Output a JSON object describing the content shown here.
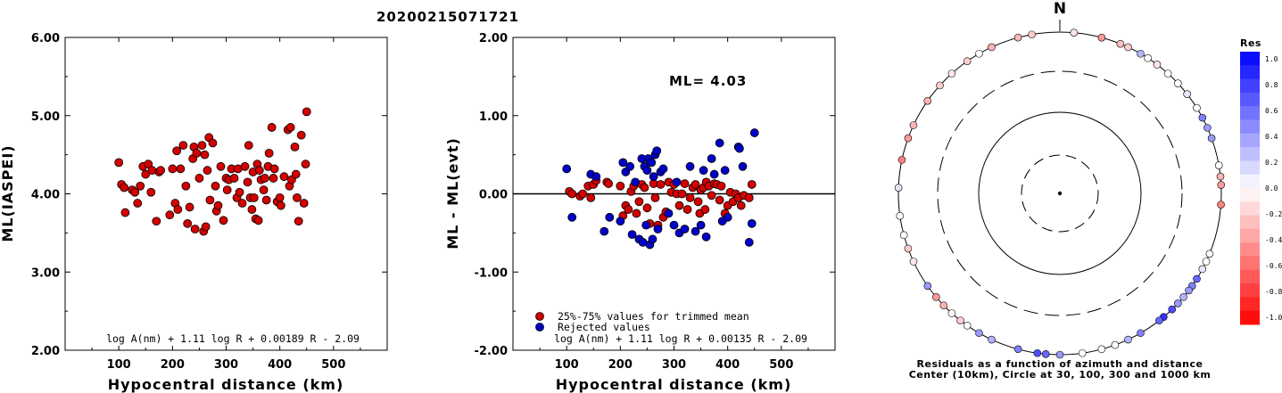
{
  "figure_title": "20200215071721",
  "chart_data": [
    {
      "type": "scatter",
      "ylabel": "ML(IASPEI)",
      "xlabel": "Hypocentral distance (km)",
      "xlim": [
        0,
        600
      ],
      "ylim": [
        2.0,
        6.0
      ],
      "xticks": [
        "100",
        "200",
        "300",
        "400",
        "500"
      ],
      "yticks": [
        "2.00",
        "3.00",
        "4.00",
        "5.00",
        "6.00"
      ],
      "formula": "log A(nm) + 1.11 log R + 0.00189 R - 2.09",
      "series": [
        {
          "color": "#d40000",
          "points": [
            [
              100,
              4.4
            ],
            [
              105,
              4.12
            ],
            [
              110,
              4.08
            ],
            [
              112,
              3.76
            ],
            [
              125,
              4.05
            ],
            [
              130,
              4.02
            ],
            [
              135,
              3.88
            ],
            [
              140,
              4.1
            ],
            [
              145,
              4.35
            ],
            [
              150,
              4.25
            ],
            [
              155,
              4.38
            ],
            [
              160,
              4.02
            ],
            [
              162,
              4.3
            ],
            [
              170,
              3.65
            ],
            [
              175,
              4.28
            ],
            [
              178,
              4.3
            ],
            [
              195,
              3.73
            ],
            [
              200,
              4.32
            ],
            [
              205,
              3.88
            ],
            [
              208,
              4.55
            ],
            [
              210,
              3.8
            ],
            [
              215,
              4.32
            ],
            [
              220,
              4.62
            ],
            [
              225,
              4.1
            ],
            [
              228,
              3.62
            ],
            [
              232,
              3.83
            ],
            [
              238,
              4.45
            ],
            [
              240,
              4.6
            ],
            [
              242,
              3.55
            ],
            [
              245,
              4.52
            ],
            [
              250,
              4.2
            ],
            [
              255,
              4.62
            ],
            [
              258,
              3.52
            ],
            [
              260,
              4.5
            ],
            [
              262,
              3.58
            ],
            [
              265,
              4.3
            ],
            [
              268,
              4.72
            ],
            [
              270,
              3.92
            ],
            [
              275,
              4.65
            ],
            [
              280,
              4.1
            ],
            [
              282,
              3.78
            ],
            [
              285,
              3.85
            ],
            [
              290,
              4.35
            ],
            [
              295,
              3.66
            ],
            [
              300,
              4.2
            ],
            [
              302,
              4.05
            ],
            [
              305,
              4.18
            ],
            [
              310,
              4.32
            ],
            [
              315,
              4.2
            ],
            [
              320,
              3.95
            ],
            [
              322,
              4.32
            ],
            [
              325,
              4.02
            ],
            [
              330,
              3.88
            ],
            [
              335,
              4.35
            ],
            [
              340,
              4.15
            ],
            [
              342,
              4.62
            ],
            [
              345,
              3.95
            ],
            [
              348,
              3.8
            ],
            [
              350,
              4.28
            ],
            [
              352,
              3.95
            ],
            [
              355,
              3.68
            ],
            [
              358,
              4.38
            ],
            [
              360,
              3.66
            ],
            [
              362,
              4.3
            ],
            [
              365,
              4.18
            ],
            [
              370,
              4.05
            ],
            [
              372,
              4.2
            ],
            [
              375,
              3.92
            ],
            [
              378,
              4.35
            ],
            [
              380,
              4.52
            ],
            [
              385,
              4.85
            ],
            [
              388,
              4.2
            ],
            [
              390,
              4.32
            ],
            [
              395,
              3.9
            ],
            [
              400,
              3.95
            ],
            [
              402,
              3.85
            ],
            [
              408,
              4.22
            ],
            [
              415,
              4.82
            ],
            [
              418,
              4.1
            ],
            [
              420,
              4.85
            ],
            [
              422,
              4.18
            ],
            [
              428,
              4.6
            ],
            [
              430,
              4.25
            ],
            [
              432,
              3.95
            ],
            [
              435,
              3.65
            ],
            [
              440,
              4.75
            ],
            [
              445,
              3.88
            ],
            [
              448,
              4.38
            ],
            [
              450,
              5.05
            ]
          ]
        }
      ]
    },
    {
      "type": "scatter",
      "ylabel": "ML - ML(evt)",
      "xlabel": "Hypocentral distance (km)",
      "xlim": [
        0,
        600
      ],
      "ylim": [
        -2.0,
        2.0
      ],
      "xticks": [
        "100",
        "200",
        "300",
        "400",
        "500"
      ],
      "yticks": [
        "-2.00",
        "-1.00",
        "0.00",
        "1.00",
        "2.00"
      ],
      "annotation": "ML= 4.03",
      "formula": "log A(nm) + 1.11 log R + 0.00135 R - 2.09",
      "series": [
        {
          "name": "25%-75% values for trimmed mean",
          "color": "#d40000",
          "points": [
            [
              105,
              0.03
            ],
            [
              110,
              0.0
            ],
            [
              125,
              -0.03
            ],
            [
              130,
              0.0
            ],
            [
              140,
              0.1
            ],
            [
              145,
              -0.05
            ],
            [
              150,
              0.12
            ],
            [
              155,
              0.17
            ],
            [
              175,
              0.15
            ],
            [
              178,
              0.13
            ],
            [
              200,
              0.1
            ],
            [
              205,
              -0.28
            ],
            [
              210,
              -0.15
            ],
            [
              215,
              -0.2
            ],
            [
              220,
              0.03
            ],
            [
              225,
              0.1
            ],
            [
              230,
              -0.25
            ],
            [
              235,
              -0.1
            ],
            [
              240,
              0.12
            ],
            [
              245,
              0.08
            ],
            [
              250,
              -0.18
            ],
            [
              255,
              -0.38
            ],
            [
              262,
              0.13
            ],
            [
              265,
              -0.05
            ],
            [
              270,
              -0.4
            ],
            [
              275,
              0.12
            ],
            [
              280,
              -0.3
            ],
            [
              285,
              -0.23
            ],
            [
              290,
              0.15
            ],
            [
              295,
              0.02
            ],
            [
              300,
              0.12
            ],
            [
              305,
              0.0
            ],
            [
              310,
              -0.15
            ],
            [
              315,
              0.0
            ],
            [
              320,
              0.13
            ],
            [
              325,
              -0.2
            ],
            [
              330,
              -0.05
            ],
            [
              335,
              0.08
            ],
            [
              340,
              0.12
            ],
            [
              345,
              -0.1
            ],
            [
              348,
              -0.25
            ],
            [
              350,
              0.05
            ],
            [
              355,
              0.08
            ],
            [
              358,
              -0.2
            ],
            [
              360,
              0.15
            ],
            [
              365,
              0.1
            ],
            [
              370,
              -0.02
            ],
            [
              375,
              0.13
            ],
            [
              380,
              0.12
            ],
            [
              385,
              -0.08
            ],
            [
              388,
              0.1
            ],
            [
              395,
              -0.25
            ],
            [
              400,
              -0.15
            ],
            [
              405,
              0.02
            ],
            [
              410,
              -0.1
            ],
            [
              415,
              0.0
            ],
            [
              420,
              -0.05
            ],
            [
              425,
              -0.15
            ],
            [
              430,
              -0.02
            ],
            [
              440,
              -0.05
            ],
            [
              445,
              0.12
            ]
          ]
        },
        {
          "name": "Rejected values",
          "color": "#0000c8",
          "points": [
            [
              100,
              0.32
            ],
            [
              110,
              -0.3
            ],
            [
              145,
              0.25
            ],
            [
              155,
              0.22
            ],
            [
              170,
              -0.48
            ],
            [
              180,
              -0.3
            ],
            [
              200,
              -0.35
            ],
            [
              205,
              0.4
            ],
            [
              210,
              0.28
            ],
            [
              218,
              0.35
            ],
            [
              222,
              -0.52
            ],
            [
              228,
              0.15
            ],
            [
              235,
              -0.58
            ],
            [
              240,
              0.45
            ],
            [
              242,
              -0.62
            ],
            [
              245,
              0.35
            ],
            [
              248,
              -0.4
            ],
            [
              250,
              0.3
            ],
            [
              252,
              0.45
            ],
            [
              255,
              -0.65
            ],
            [
              258,
              0.4
            ],
            [
              260,
              -0.58
            ],
            [
              262,
              0.22
            ],
            [
              265,
              0.5
            ],
            [
              268,
              0.55
            ],
            [
              270,
              -0.45
            ],
            [
              275,
              0.28
            ],
            [
              280,
              0.32
            ],
            [
              290,
              -0.25
            ],
            [
              300,
              -0.4
            ],
            [
              305,
              0.15
            ],
            [
              310,
              -0.5
            ],
            [
              320,
              -0.45
            ],
            [
              330,
              0.35
            ],
            [
              340,
              -0.48
            ],
            [
              350,
              -0.4
            ],
            [
              355,
              0.3
            ],
            [
              360,
              -0.55
            ],
            [
              370,
              0.45
            ],
            [
              375,
              0.25
            ],
            [
              385,
              0.65
            ],
            [
              390,
              -0.35
            ],
            [
              395,
              0.3
            ],
            [
              400,
              -0.3
            ],
            [
              420,
              0.6
            ],
            [
              422,
              0.58
            ],
            [
              428,
              0.35
            ],
            [
              440,
              -0.62
            ],
            [
              445,
              -0.38
            ],
            [
              450,
              0.78
            ]
          ]
        }
      ]
    },
    {
      "type": "scatter",
      "subtype": "polar residuals",
      "north_label": "N",
      "caption_line1": "Residuals as a function of azimuth and distance",
      "caption_line2": "Center (10km), Circle at 30, 100, 300 and 1000 km",
      "colorbar": {
        "title": "Res",
        "labels": [
          "1.0",
          "0.8",
          "0.6",
          "0.4",
          "0.2",
          "0.0",
          "-0.2",
          "-0.4",
          "-0.6",
          "-0.8",
          "-1.0"
        ]
      },
      "stations_az_dist_res": [
        [
          345,
          4.0,
          -0.3
        ],
        [
          350,
          4.05,
          -0.2
        ],
        [
          5,
          4.15,
          -0.1
        ],
        [
          15,
          4.05,
          -0.4
        ],
        [
          22,
          4.0,
          -0.25
        ],
        [
          25,
          3.95,
          -0.2
        ],
        [
          30,
          3.7,
          0.3
        ],
        [
          33,
          3.85,
          0.0
        ],
        [
          37,
          3.85,
          -0.1
        ],
        [
          42,
          3.9,
          0.0
        ],
        [
          47,
          3.85,
          0.0
        ],
        [
          52,
          3.85,
          0.1
        ],
        [
          58,
          3.9,
          0.0
        ],
        [
          62,
          3.8,
          0.5
        ],
        [
          66,
          3.95,
          0.4
        ],
        [
          70,
          3.95,
          0.4
        ],
        [
          80,
          3.95,
          0.0
        ],
        [
          84,
          4.0,
          -0.3
        ],
        [
          87,
          4.1,
          -0.4
        ],
        [
          94,
          4.1,
          -0.5
        ],
        [
          112,
          4.05,
          0.0
        ],
        [
          115,
          4.0,
          0.0
        ],
        [
          118,
          3.95,
          0.1
        ],
        [
          122,
          4.0,
          0.6
        ],
        [
          125,
          4.0,
          0.5
        ],
        [
          127,
          3.95,
          0.4
        ],
        [
          130,
          3.95,
          0.3
        ],
        [
          133,
          3.85,
          0.4
        ],
        [
          136,
          3.9,
          0.7
        ],
        [
          140,
          3.95,
          0.8
        ],
        [
          142,
          3.9,
          0.6
        ],
        [
          150,
          3.85,
          0.5
        ],
        [
          155,
          3.85,
          0.3
        ],
        [
          160,
          3.9,
          0.0
        ],
        [
          165,
          3.8,
          0.0
        ],
        [
          172,
          3.85,
          0.0
        ],
        [
          180,
          3.85,
          0.4
        ],
        [
          185,
          3.85,
          0.6
        ],
        [
          188,
          3.9,
          0.7
        ],
        [
          195,
          3.9,
          0.5
        ],
        [
          205,
          3.85,
          0.3
        ],
        [
          210,
          3.9,
          0.4
        ],
        [
          215,
          3.9,
          0.0
        ],
        [
          218,
          4.0,
          -0.2
        ],
        [
          222,
          3.95,
          0.0
        ],
        [
          226,
          3.75,
          -0.3
        ],
        [
          230,
          3.85,
          -0.4
        ],
        [
          235,
          3.8,
          0.4
        ],
        [
          245,
          3.8,
          -0.1
        ],
        [
          250,
          3.85,
          -0.2
        ],
        [
          255,
          3.95,
          0.0
        ],
        [
          262,
          3.95,
          0.0
        ],
        [
          272,
          3.9,
          0.1
        ],
        [
          282,
          3.95,
          -0.5
        ],
        [
          290,
          3.9,
          -0.4
        ],
        [
          295,
          3.9,
          -0.3
        ],
        [
          305,
          3.95,
          -0.3
        ],
        [
          312,
          3.9,
          -0.2
        ],
        [
          318,
          3.8,
          -0.1
        ],
        [
          325,
          3.7,
          -0.2
        ],
        [
          330,
          3.65,
          0.0
        ],
        [
          335,
          3.7,
          -0.3
        ]
      ]
    }
  ]
}
